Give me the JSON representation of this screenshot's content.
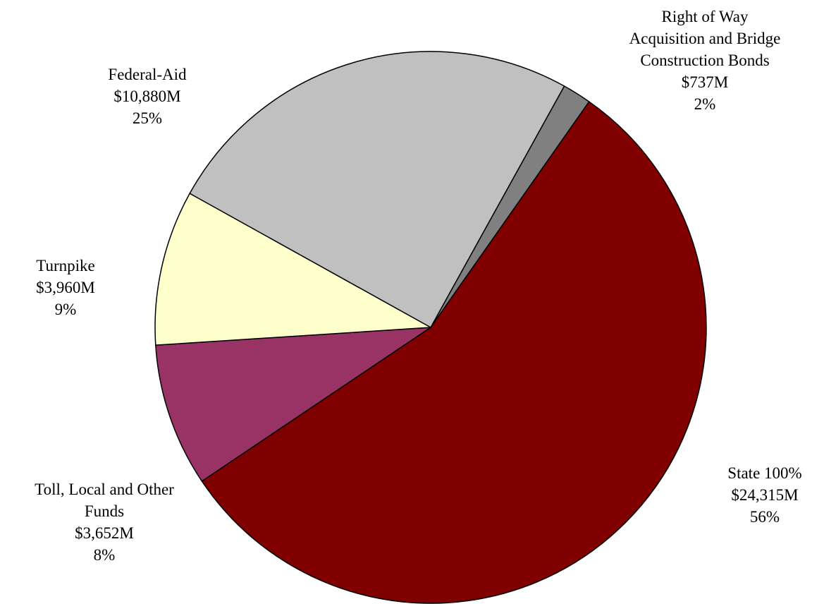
{
  "chart_data": {
    "type": "pie",
    "title": "",
    "units": "$M",
    "slices": [
      {
        "label_lines": [
          "Right of Way",
          "Acquisition and Bridge",
          "Construction Bonds"
        ],
        "amount": "$737M",
        "percent": "2%",
        "value": 737,
        "color": "#808080"
      },
      {
        "label_lines": [
          "State 100%"
        ],
        "amount": "$24,315M",
        "percent": "56%",
        "value": 24315,
        "color": "#800000"
      },
      {
        "label_lines": [
          "Toll, Local and Other",
          "Funds"
        ],
        "amount": "$3,652M",
        "percent": "8%",
        "value": 3652,
        "color": "#993366"
      },
      {
        "label_lines": [
          "Turnpike"
        ],
        "amount": "$3,960M",
        "percent": "9%",
        "value": 3960,
        "color": "#FFFFCC"
      },
      {
        "label_lines": [
          "Federal-Aid"
        ],
        "amount": "$10,880M",
        "percent": "25%",
        "value": 10880,
        "color": "#C0C0C0"
      }
    ],
    "start_angle_deg": 61,
    "direction": "clockwise",
    "label_placement": "outside"
  }
}
